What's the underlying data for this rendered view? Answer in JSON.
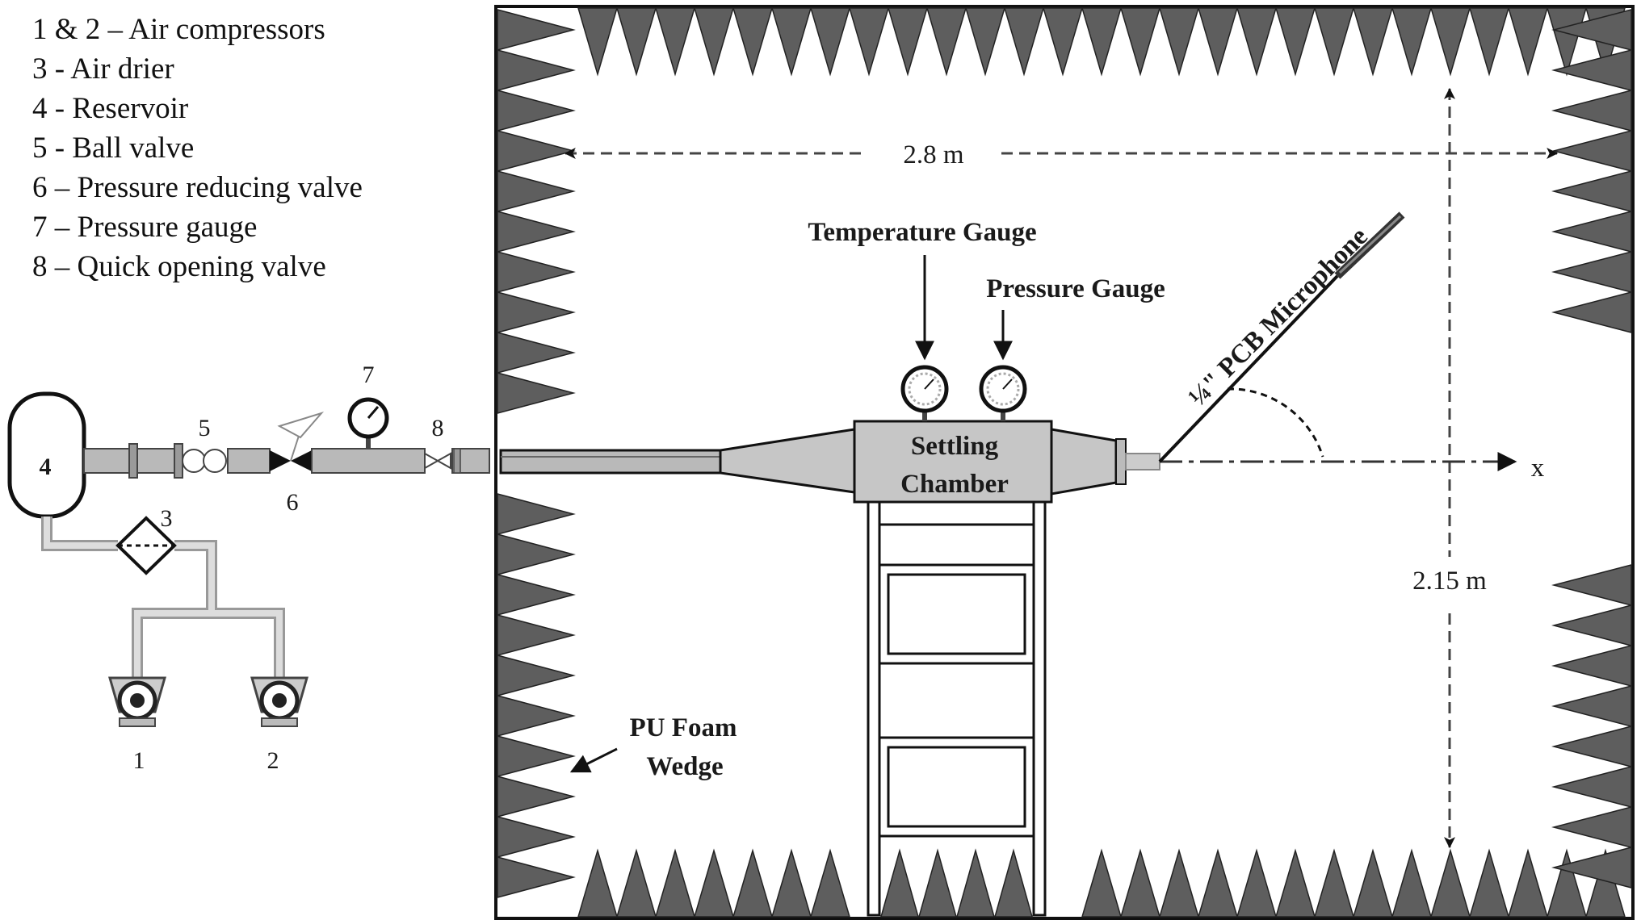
{
  "legend": [
    "1 & 2 – Air compressors",
    "3 - Air drier",
    "4 - Reservoir",
    "5 - Ball valve",
    "6 – Pressure reducing valve",
    "7 – Pressure gauge",
    "8 – Quick opening valve"
  ],
  "component_numbers": {
    "reservoir": "4",
    "air_drier": "3",
    "ball_valve": "5",
    "pressure_reducing_valve": "6",
    "pressure_gauge": "7",
    "quick_opening_valve": "8",
    "compressor_1": "1",
    "compressor_2": "2"
  },
  "chamber": {
    "width_label": "2.8 m",
    "height_label": "2.15 m",
    "wedge_label_line1": "PU Foam",
    "wedge_label_line2": "Wedge"
  },
  "instruments": {
    "temperature_gauge": "Temperature Gauge",
    "pressure_gauge": "Pressure Gauge",
    "settling_line1": "Settling",
    "settling_line2": "Chamber",
    "microphone": "¼\" PCB Microphone",
    "axis_label": "x"
  },
  "colors": {
    "wedge_fill": "#5e5e5e",
    "pipe_fill": "#b9b9b9",
    "chamber_fill": "#c6c6c6"
  }
}
